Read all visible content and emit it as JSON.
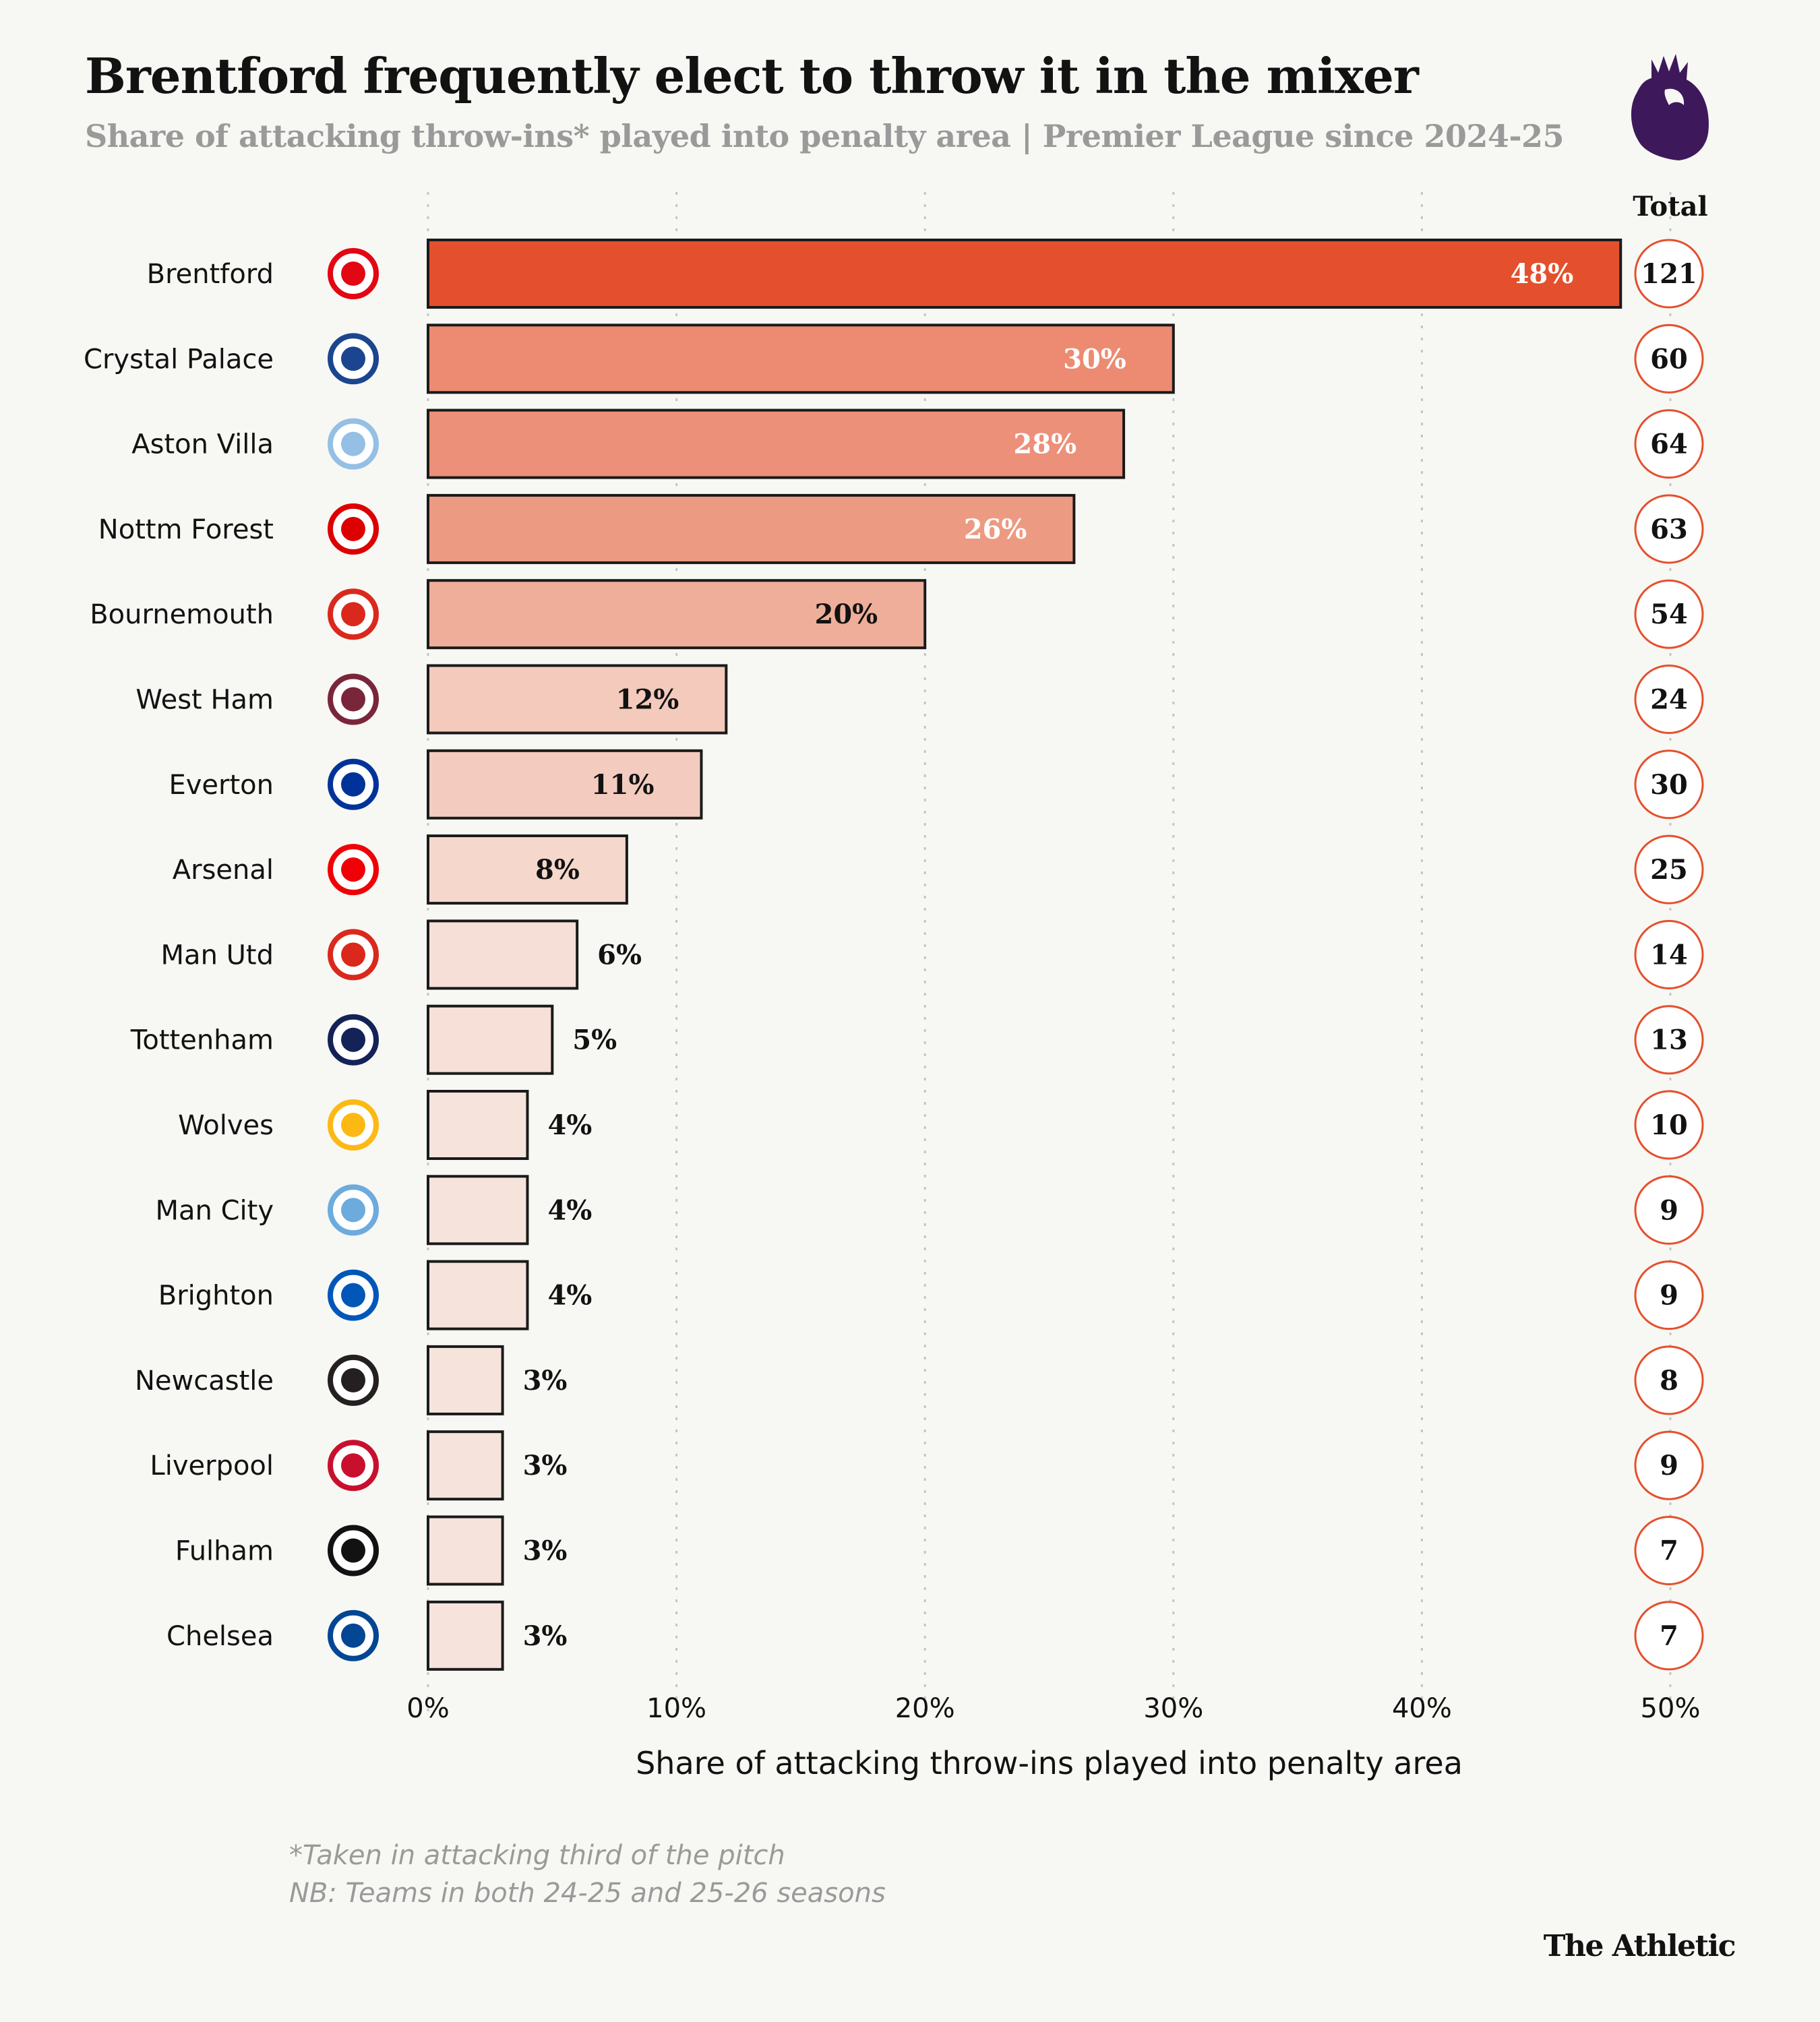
{
  "header": {
    "title": "Brentford frequently elect to throw it in the mixer",
    "subtitle": "Share of attacking throw-ins* played into penalty area | Premier League since 2024-25",
    "logo": "premier-league-lion-icon"
  },
  "chart_data": {
    "type": "bar",
    "orientation": "horizontal",
    "xlabel": "Share of attacking throw-ins played into penalty area",
    "xlim": [
      0,
      50
    ],
    "x_ticks": [
      "0%",
      "10%",
      "20%",
      "30%",
      "40%",
      "50%"
    ],
    "grid": "vertical dotted",
    "total_header": "Total",
    "categories": [
      "Brentford",
      "Crystal Palace",
      "Aston Villa",
      "Nottm Forest",
      "Bournemouth",
      "West Ham",
      "Everton",
      "Arsenal",
      "Man Utd",
      "Tottenham",
      "Wolves",
      "Man City",
      "Brighton",
      "Newcastle",
      "Liverpool",
      "Fulham",
      "Chelsea"
    ],
    "values": [
      48,
      30,
      28,
      26,
      20,
      12,
      11,
      8,
      6,
      5,
      4,
      4,
      4,
      3,
      3,
      3,
      3
    ],
    "value_labels": [
      "48%",
      "30%",
      "28%",
      "26%",
      "20%",
      "12%",
      "11%",
      "8%",
      "6%",
      "5%",
      "4%",
      "4%",
      "4%",
      "3%",
      "3%",
      "3%",
      "3%"
    ],
    "totals": [
      "121",
      "60",
      "64",
      "63",
      "54",
      "24",
      "30",
      "25",
      "14",
      "13",
      "10",
      "9",
      "9",
      "8",
      "9",
      "7",
      "7"
    ],
    "bar_colors": [
      "#e4502d",
      "#ec8b72",
      "#ec9079",
      "#ed9a82",
      "#efae99",
      "#f3cabc",
      "#f3ccbf",
      "#f5d7cc",
      "#f6dfd6",
      "#f6e0d7",
      "#f6e3db",
      "#f6e3db",
      "#f6e3db",
      "#f6e4dc",
      "#f6e4dc",
      "#f6e4dc",
      "#f6e4dc"
    ],
    "crest_colors": [
      "#e30613",
      "#1b458f",
      "#95bfe5",
      "#dd0000",
      "#da291c",
      "#7a263a",
      "#003399",
      "#ef0107",
      "#da291c",
      "#132257",
      "#fdb913",
      "#6cabdd",
      "#0057b8",
      "#241f20",
      "#c8102e",
      "#121212",
      "#034694"
    ],
    "accent_circle": "#e4502d"
  },
  "footer": {
    "notes": [
      "*Taken in attacking third of the pitch",
      "NB: Teams in both 24-25 and 25-26 seasons"
    ],
    "brand": "The Athletic"
  }
}
